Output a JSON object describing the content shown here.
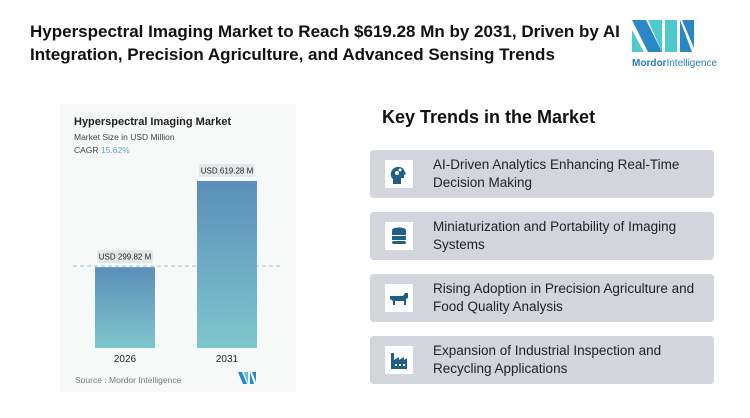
{
  "header": {
    "title": "Hyperspectral Imaging Market to Reach $619.28 Mn by 2031, Driven by AI Integration, Precision Agriculture, and Advanced Sensing Trends",
    "logo_text_bold": "Mordor",
    "logo_text": "Intelligence"
  },
  "chart_card": {
    "title": "Hyperspectral Imaging Market",
    "subtitle": "Market Size in USD Million",
    "cagr_label": "CAGR",
    "cagr_value": "15.62%",
    "source": "Source :  Mordor Intelligence"
  },
  "chart_data": {
    "type": "bar",
    "categories": [
      "2026",
      "2031"
    ],
    "values": [
      299.82,
      619.28
    ],
    "data_labels": [
      "USD 299.82 M",
      "USD 619.28 M"
    ],
    "ylim": [
      0,
      700
    ],
    "grid": false,
    "colors": {
      "bar_top": "#5b8fba",
      "bar_bottom": "#7fc6cc"
    }
  },
  "key_trends": {
    "title": "Key Trends in the Market",
    "items": [
      {
        "icon": "ai-head-gears-icon",
        "label": "AI-Driven Analytics Enhancing Real-Time Decision Making"
      },
      {
        "icon": "database-icon",
        "label": "Miniaturization and Portability of Imaging Systems"
      },
      {
        "icon": "cow-icon",
        "label": "Rising Adoption in Precision Agriculture and Food Quality Analysis"
      },
      {
        "icon": "factory-icon",
        "label": "Expansion of Industrial Inspection and Recycling Applications"
      }
    ]
  },
  "colors": {
    "accent": "#1f5f86",
    "trend_bg": "#d2d6dc"
  }
}
